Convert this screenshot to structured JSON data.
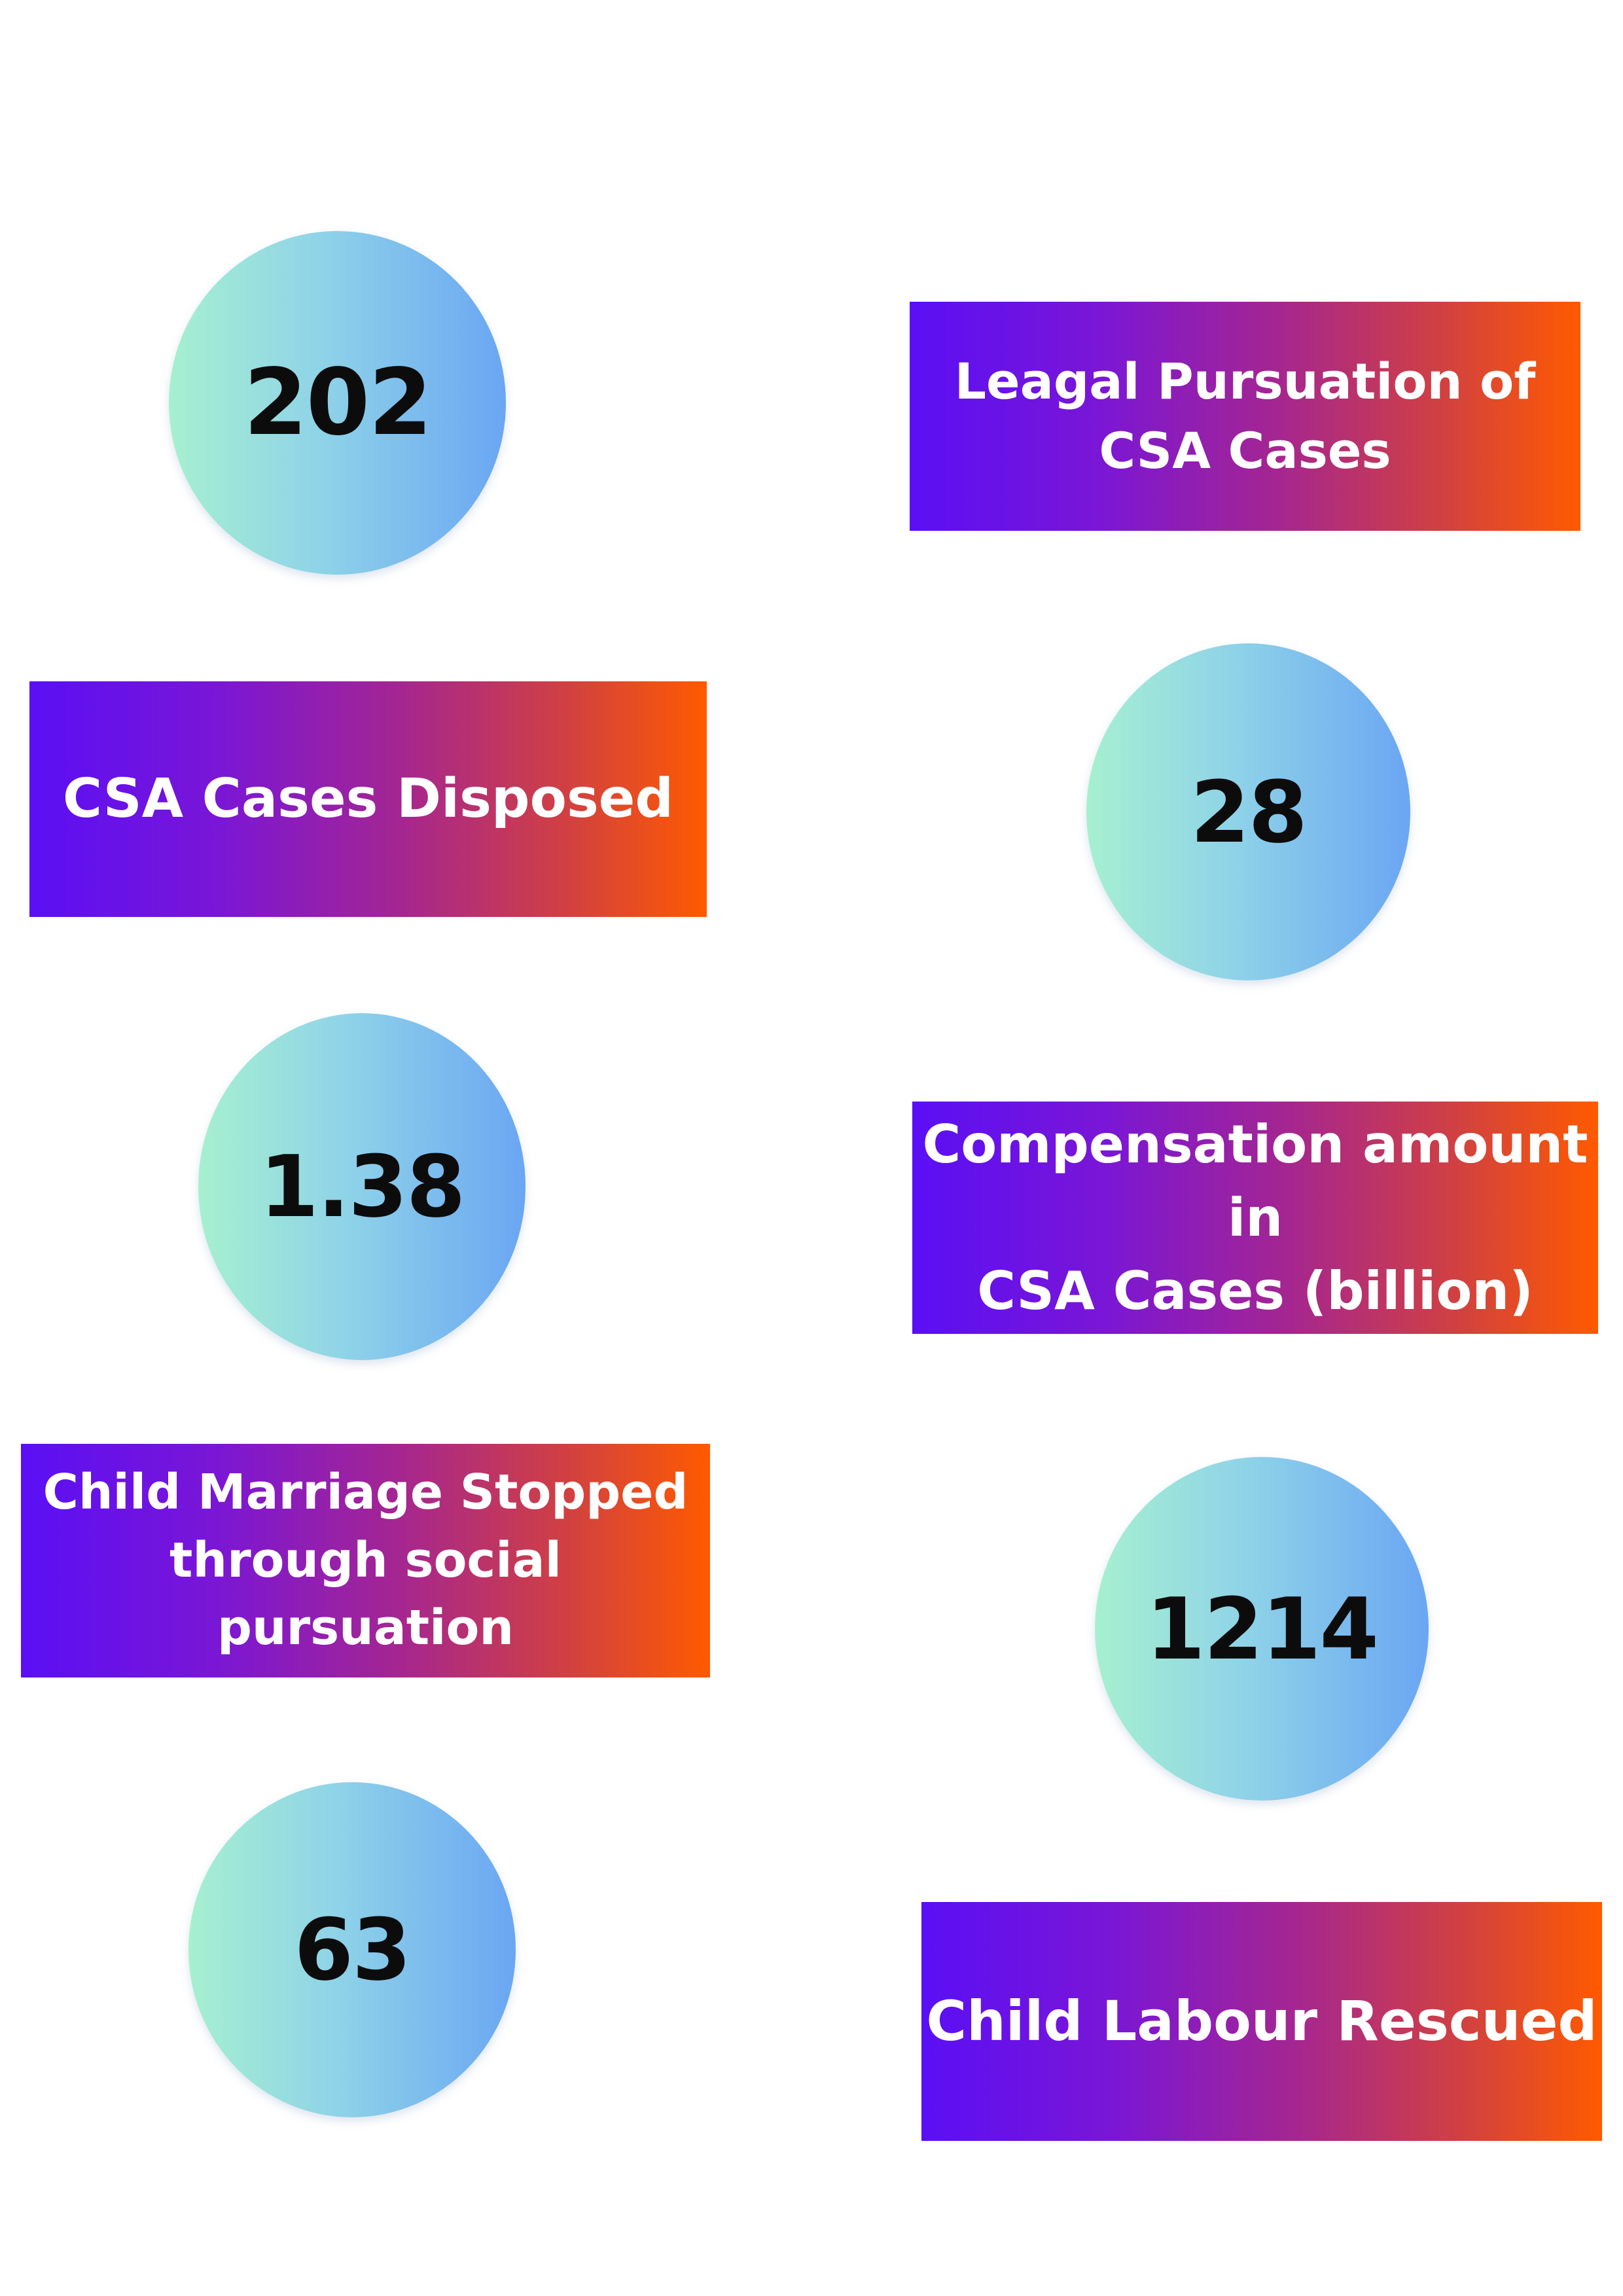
{
  "stats": [
    {
      "value": "202",
      "label": "Leagal Pursuation of\nCSA Cases"
    },
    {
      "value": "28",
      "label": "CSA Cases Disposed"
    },
    {
      "value": "1.38",
      "label": "Compensation amount in\nCSA Cases  (billion)"
    },
    {
      "value": "1214",
      "label": "Child Marriage Stopped\nthrough social pursuation"
    },
    {
      "value": "63",
      "label": "Child Labour Rescued"
    }
  ],
  "colors": {
    "banner_gradient": [
      "#5a0ff5",
      "#a52690",
      "#ff5a00"
    ],
    "circle_gradient": [
      "#a6f0d0",
      "#6aa6f3"
    ],
    "number_text": "#0c0c0c",
    "banner_text": "#ffffff"
  }
}
